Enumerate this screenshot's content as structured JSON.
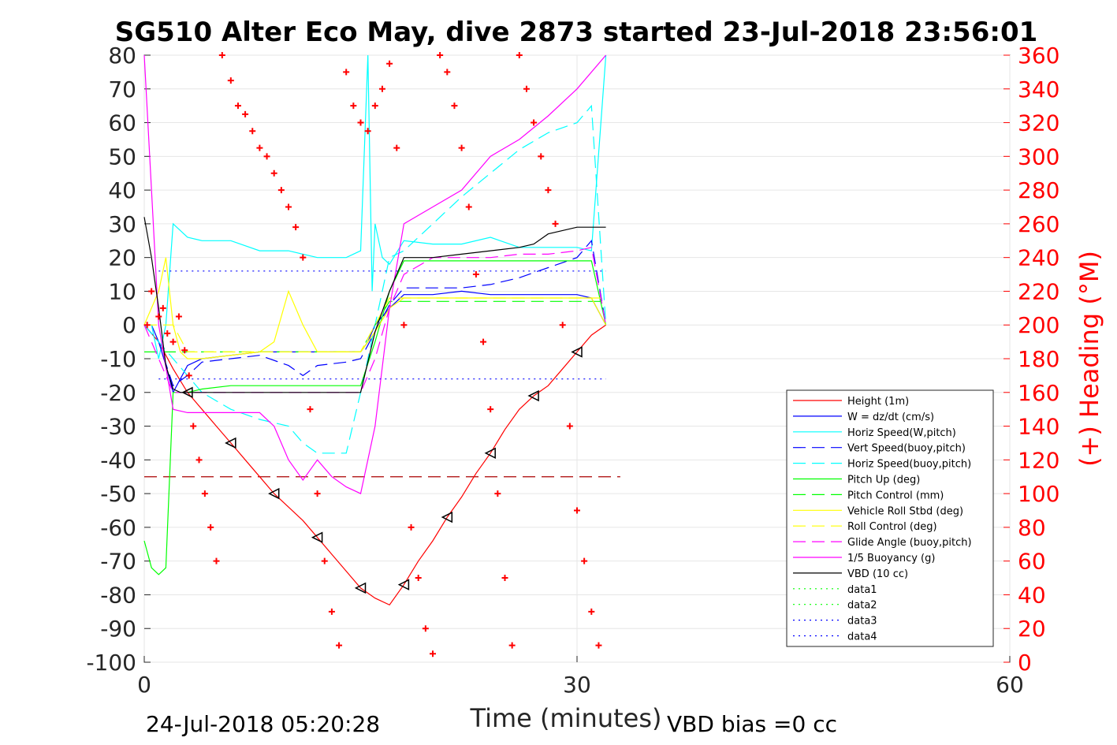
{
  "chart_data": {
    "type": "line",
    "title": "SG510 Alter Eco May, dive 2873 started 23-Jul-2018 23:56:01",
    "xlabel": "Time (minutes)",
    "ylabel_right": "(+) Heading (°M)",
    "xlim": [
      0,
      60
    ],
    "ylim": [
      -100,
      80
    ],
    "ylim_right": [
      0,
      360
    ],
    "x_ticks": [
      "0",
      "30",
      "60"
    ],
    "y_ticks": [
      "80",
      "70",
      "60",
      "50",
      "40",
      "30",
      "20",
      "10",
      "0",
      "-10",
      "-20",
      "-30",
      "-40",
      "-50",
      "-60",
      "-70",
      "-80",
      "-90",
      "-100"
    ],
    "y_right_ticks": [
      "360",
      "340",
      "320",
      "300",
      "280",
      "260",
      "240",
      "220",
      "200",
      "180",
      "160",
      "140",
      "120",
      "100",
      "80",
      "60",
      "40",
      "20",
      "0"
    ],
    "grid": true,
    "legend_position": "lower-right",
    "footer_left": "24-Jul-2018 05:20:28",
    "footer_right": "VBD bias =0 cc",
    "series": [
      {
        "name": "Height (1m)",
        "color": "#ff0000",
        "style": "solid",
        "x": [
          0,
          1,
          2,
          3,
          4,
          5,
          6,
          7,
          8,
          9,
          10,
          11,
          12,
          13,
          14,
          15,
          16,
          17,
          18,
          19,
          20,
          21,
          22,
          23,
          24,
          25,
          26,
          27,
          28,
          29,
          30,
          31,
          32
        ],
        "y": [
          0,
          -5,
          -13,
          -20,
          -25,
          -30,
          -35,
          -40,
          -45,
          -50,
          -54,
          -58,
          -63,
          -68,
          -73,
          -78,
          -81,
          -83,
          -77,
          -70,
          -64,
          -57,
          -51,
          -44,
          -38,
          -31,
          -25,
          -21,
          -18,
          -13,
          -8,
          -3,
          0
        ]
      },
      {
        "name": "W = dz/dt (cm/s)",
        "color": "#0000ff",
        "style": "solid",
        "x": [
          0,
          0.5,
          1,
          1.5,
          2,
          3,
          4,
          6,
          8,
          10,
          12,
          14,
          15,
          15.5,
          16,
          17,
          18,
          20,
          22,
          24,
          26,
          28,
          30,
          31,
          32
        ],
        "y": [
          0,
          0,
          -5,
          -12,
          -20,
          -12,
          -10,
          -9,
          -8,
          -8,
          -8,
          -8,
          -8,
          -5,
          0,
          5,
          9,
          9,
          10,
          9,
          9,
          9,
          9,
          8,
          0
        ]
      },
      {
        "name": "Horiz Speed(W,pitch)",
        "color": "#00ffff",
        "style": "solid",
        "x": [
          0,
          0.5,
          1,
          1.5,
          2,
          3,
          4,
          6,
          8,
          10,
          12,
          14,
          15,
          15.5,
          15.8,
          16,
          16.5,
          17,
          18,
          20,
          22,
          24,
          26,
          28,
          30,
          31,
          32
        ],
        "y": [
          0,
          0,
          -10,
          0,
          30,
          26,
          25,
          25,
          22,
          22,
          20,
          20,
          22,
          80,
          10,
          30,
          20,
          18,
          25,
          24,
          24,
          26,
          23,
          23,
          23,
          22,
          80
        ]
      },
      {
        "name": "Vert Speed(buoy,pitch)",
        "color": "#0000ff",
        "style": "dashed",
        "x": [
          0,
          1,
          2,
          3,
          4,
          6,
          8,
          10,
          11,
          12,
          14,
          15,
          16,
          17,
          18,
          20,
          22,
          24,
          26,
          28,
          30,
          31,
          32
        ],
        "y": [
          0,
          -5,
          -18,
          -15,
          -11,
          -10,
          -9,
          -12,
          -15,
          -12,
          -11,
          -10,
          -2,
          6,
          11,
          11,
          11,
          12,
          14,
          17,
          20,
          25,
          0
        ]
      },
      {
        "name": "Horiz Speed(buoy,pitch)",
        "color": "#00ffff",
        "style": "dashed",
        "x": [
          0,
          1,
          2,
          3,
          4,
          6,
          8,
          10,
          11,
          12,
          14,
          15,
          16,
          17,
          18,
          20,
          22,
          24,
          26,
          28,
          30,
          31,
          32
        ],
        "y": [
          0,
          -5,
          -10,
          -15,
          -20,
          -25,
          -28,
          -30,
          -35,
          -38,
          -38,
          -20,
          0,
          20,
          22,
          30,
          38,
          45,
          52,
          57,
          60,
          65,
          0
        ]
      },
      {
        "name": "Pitch Up (deg)",
        "color": "#00ff00",
        "style": "solid",
        "x": [
          0,
          0.5,
          1,
          1.5,
          2,
          3,
          4,
          6,
          8,
          10,
          12,
          14,
          15,
          16,
          17,
          18,
          20,
          22,
          24,
          26,
          28,
          30,
          31,
          32
        ],
        "y": [
          -64,
          -72,
          -74,
          -72,
          -20,
          -20,
          -19,
          -18,
          -18,
          -18,
          -18,
          -18,
          -18,
          -5,
          10,
          19,
          19,
          19,
          19,
          19,
          19,
          19,
          19,
          0
        ]
      },
      {
        "name": "Pitch Control (mm)",
        "color": "#00ff00",
        "style": "dashed",
        "x": [
          0,
          2,
          3,
          15,
          16,
          17,
          18,
          32
        ],
        "y": [
          -8,
          -8,
          -8,
          -8,
          0,
          7,
          7,
          7
        ]
      },
      {
        "name": "Vehicle Roll Stbd (deg)",
        "color": "#ffff00",
        "style": "solid",
        "x": [
          0,
          1,
          1.5,
          2,
          2.5,
          3,
          4,
          8,
          9,
          10,
          11,
          12,
          14,
          15,
          16,
          17,
          18,
          20,
          22,
          24,
          26,
          28,
          30,
          31,
          32
        ],
        "y": [
          0,
          10,
          20,
          0,
          -8,
          -10,
          -10,
          -8,
          -5,
          10,
          0,
          -8,
          -8,
          -8,
          -2,
          5,
          8,
          8,
          8,
          8,
          8,
          8,
          8,
          8,
          0
        ]
      },
      {
        "name": "Roll Control (deg)",
        "color": "#ffff00",
        "style": "dashed",
        "x": [
          0,
          2,
          3,
          15,
          16,
          17,
          18,
          32
        ],
        "y": [
          0,
          0,
          -8,
          -8,
          0,
          8,
          8,
          8
        ]
      },
      {
        "name": "Glide Angle (buoy,pitch)",
        "color": "#ff00ff",
        "style": "dashed",
        "x": [
          0,
          1,
          2,
          3,
          4,
          6,
          8,
          10,
          12,
          14,
          15,
          16,
          17,
          18,
          20,
          22,
          24,
          26,
          28,
          30,
          31,
          32
        ],
        "y": [
          0,
          -10,
          -20,
          -20,
          -20,
          -20,
          -20,
          -20,
          -20,
          -20,
          -20,
          -10,
          5,
          15,
          20,
          20,
          20,
          21,
          21,
          22,
          23,
          0
        ]
      },
      {
        "name": "1/5 Buoyancy (g)",
        "color": "#ff00ff",
        "style": "solid",
        "x": [
          0,
          0.5,
          1,
          2,
          3,
          4,
          5,
          6,
          7,
          8,
          9,
          10,
          11,
          12,
          13,
          14,
          15,
          16,
          17,
          18,
          20,
          22,
          24,
          26,
          28,
          30,
          32
        ],
        "y": [
          80,
          40,
          0,
          -25,
          -26,
          -26,
          -26,
          -26,
          -26,
          -26,
          -30,
          -40,
          -46,
          -40,
          -45,
          -48,
          -50,
          -30,
          5,
          30,
          35,
          40,
          50,
          55,
          62,
          70,
          80
        ]
      },
      {
        "name": "VBD (10 cc)",
        "color": "#000000",
        "style": "solid",
        "x": [
          0,
          0.5,
          1,
          1.5,
          2,
          2.5,
          15,
          16,
          17,
          18,
          20,
          22,
          24,
          26,
          27,
          28,
          29,
          30,
          31,
          32
        ],
        "y": [
          32,
          20,
          5,
          -12,
          -19,
          -20,
          -20,
          -2,
          10,
          20,
          20,
          21,
          22,
          23,
          24,
          27,
          28,
          29,
          29,
          29
        ]
      },
      {
        "name": "data1",
        "color": "#00ff00",
        "style": "dotted",
        "x": [],
        "y": []
      },
      {
        "name": "data2",
        "color": "#00ff00",
        "style": "dotted",
        "x": [],
        "y": []
      },
      {
        "name": "data3",
        "color": "#0000ff",
        "style": "dotted",
        "x": [
          1,
          32
        ],
        "y": [
          16,
          16
        ]
      },
      {
        "name": "data4",
        "color": "#0000ff",
        "style": "dotted",
        "x": [
          1,
          32
        ],
        "y": [
          -16,
          -16
        ]
      }
    ],
    "reference_lines": [
      {
        "color": "#aa0000",
        "style": "dashed",
        "x": [
          0,
          33
        ],
        "y": [
          -45,
          -45
        ]
      }
    ],
    "heading_points": {
      "color": "#ff0000",
      "x": [
        0.2,
        0.5,
        1.0,
        1.3,
        1.6,
        2.0,
        2.4,
        2.8,
        3.1,
        3.4,
        3.8,
        4.2,
        4.6,
        5.0,
        5.4,
        6.0,
        6.5,
        7.0,
        7.5,
        8.0,
        8.5,
        9.0,
        9.5,
        10.0,
        10.5,
        11.0,
        11.5,
        12.0,
        12.5,
        13.0,
        13.5,
        14.0,
        14.5,
        15.0,
        15.5,
        16.0,
        16.5,
        17.0,
        17.5,
        18.0,
        18.5,
        19.0,
        19.5,
        20.0,
        20.5,
        21.0,
        21.5,
        22.0,
        22.5,
        23.0,
        23.5,
        24.0,
        24.5,
        25.0,
        25.5,
        26.0,
        26.5,
        27.0,
        27.5,
        28.0,
        28.5,
        29.0,
        29.5,
        30.0,
        30.5,
        31.0,
        31.5
      ],
      "y": [
        200,
        220,
        205,
        210,
        195,
        190,
        205,
        185,
        170,
        140,
        120,
        100,
        80,
        60,
        360,
        345,
        330,
        325,
        315,
        305,
        300,
        290,
        280,
        270,
        258,
        240,
        150,
        100,
        60,
        30,
        10,
        350,
        330,
        320,
        315,
        330,
        340,
        355,
        305,
        200,
        80,
        50,
        20,
        5,
        360,
        350,
        330,
        305,
        270,
        230,
        190,
        150,
        100,
        50,
        10,
        360,
        340,
        320,
        300,
        280,
        260,
        200,
        140,
        90,
        60,
        30,
        10
      ]
    }
  }
}
